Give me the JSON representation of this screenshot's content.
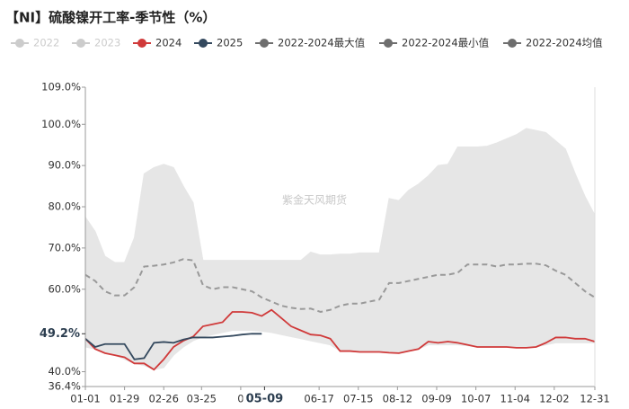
{
  "chart_data": {
    "type": "line",
    "title": "【NI】硫酸镍开工率-季节性（%）",
    "watermark": "紫金天风期货",
    "x": [
      0,
      7,
      14,
      21,
      28,
      35,
      42,
      49,
      56,
      63,
      70,
      77,
      84,
      91,
      98,
      105,
      112,
      119,
      126,
      133,
      140,
      147,
      154,
      161,
      168,
      175,
      182,
      189,
      196,
      203,
      210,
      217,
      224,
      231,
      238,
      245,
      252,
      259,
      266,
      273,
      280,
      287,
      294,
      301,
      308,
      315,
      322,
      329,
      336,
      343,
      350,
      357,
      364
    ],
    "xlim": [
      0,
      364
    ],
    "xticks": [
      {
        "value": 0,
        "label": "01-01"
      },
      {
        "value": 28,
        "label": "01-29"
      },
      {
        "value": 56,
        "label": "02-26"
      },
      {
        "value": 83,
        "label": "03-25"
      },
      {
        "value": 111,
        "label": "0"
      },
      {
        "value": 167,
        "label": "06-17"
      },
      {
        "value": 195,
        "label": "07-15"
      },
      {
        "value": 223,
        "label": "08-12"
      },
      {
        "value": 251,
        "label": "09-09"
      },
      {
        "value": 279,
        "label": "10-07"
      },
      {
        "value": 307,
        "label": "11-04"
      },
      {
        "value": 335,
        "label": "12-02"
      },
      {
        "value": 364,
        "label": "12-31"
      }
    ],
    "highlight_x": {
      "value": 128,
      "label": "05-09"
    },
    "ylim": [
      36.4,
      109
    ],
    "yticks": [
      {
        "value": 36.4,
        "label": "36.4%"
      },
      {
        "value": 40,
        "label": "40.0%"
      },
      {
        "value": 60,
        "label": "60.0%"
      },
      {
        "value": 70,
        "label": "70.0%"
      },
      {
        "value": 80,
        "label": "80.0%"
      },
      {
        "value": 90,
        "label": "90.0%"
      },
      {
        "value": 100,
        "label": "100.0%"
      },
      {
        "value": 109,
        "label": "109.0%"
      }
    ],
    "highlight_y": {
      "value": 49.2,
      "label": "49.2%"
    },
    "band_color": "#e6e6e6",
    "series": [
      {
        "name": "2022",
        "color": "#cccccc",
        "visible": false,
        "values": null
      },
      {
        "name": "2023",
        "color": "#cccccc",
        "visible": false,
        "values": null
      },
      {
        "name": "2024",
        "color": "#d03a3a",
        "visible": true,
        "role": "line",
        "values": [
          48,
          45.5,
          44.5,
          44,
          43.5,
          42,
          42,
          40.5,
          43,
          46,
          47.5,
          48.5,
          51,
          51.5,
          52,
          54.5,
          54.5,
          54.3,
          53.5,
          55,
          53,
          51,
          50,
          49,
          48.8,
          48,
          45,
          45,
          44.8,
          44.8,
          44.8,
          44.6,
          44.5,
          45,
          45.5,
          47.3,
          47,
          47.3,
          47,
          46.5,
          46,
          46,
          46,
          46,
          45.8,
          45.8,
          46,
          47,
          48.3,
          48.3,
          48,
          48,
          47.3
        ]
      },
      {
        "name": "2025",
        "color": "#34495e",
        "visible": true,
        "role": "line",
        "values": [
          48,
          46,
          46.7,
          46.7,
          46.7,
          43,
          43.3,
          47,
          47.2,
          47,
          47.8,
          48.3,
          48.3,
          48.3,
          48.5,
          48.7,
          49,
          49.2,
          49.2,
          null,
          null,
          null,
          null,
          null,
          null,
          null,
          null,
          null,
          null,
          null,
          null,
          null,
          null,
          null,
          null,
          null,
          null,
          null,
          null,
          null,
          null,
          null,
          null,
          null,
          null,
          null,
          null,
          null,
          null,
          null,
          null,
          null,
          null
        ]
      },
      {
        "name": "2022-2024最大值",
        "color": "#6e6e6e",
        "visible": true,
        "role": "max",
        "values": [
          77.5,
          74,
          68,
          66.5,
          66.5,
          72.5,
          88,
          89.5,
          90.3,
          89.5,
          85,
          81,
          67,
          67,
          67,
          67,
          67,
          67,
          67,
          67,
          67,
          67,
          67,
          69,
          68.3,
          68.3,
          68.5,
          68.5,
          68.8,
          68.8,
          68.8,
          82,
          81.5,
          84,
          85.5,
          87.5,
          90,
          90.3,
          94.5,
          94.5,
          94.5,
          94.7,
          95.5,
          96.5,
          97.5,
          99,
          98.5,
          98,
          96,
          94,
          88,
          82.5,
          78
        ]
      },
      {
        "name": "2022-2024最小值",
        "color": "#6e6e6e",
        "visible": true,
        "role": "min",
        "values": [
          46,
          45.5,
          44.5,
          44,
          43,
          42,
          41.5,
          40.5,
          41,
          44,
          46,
          47.5,
          48.5,
          49,
          49.5,
          50,
          50,
          50,
          49.8,
          49.5,
          49,
          48.5,
          48,
          47.5,
          47,
          46.5,
          45,
          45,
          44.8,
          44.8,
          44.8,
          44.6,
          44.5,
          45,
          45.5,
          46.5,
          46.5,
          46.5,
          46.5,
          46.3,
          46,
          46,
          46,
          46,
          45.8,
          45.8,
          46,
          46.5,
          47,
          47,
          47,
          47,
          47
        ]
      },
      {
        "name": "2022-2024均值",
        "color": "#6e6e6e",
        "visible": true,
        "role": "mean",
        "values": [
          63.5,
          62,
          59.5,
          58.5,
          58.5,
          60.5,
          65.5,
          65.7,
          66,
          66.5,
          67.3,
          67,
          61,
          60,
          60.5,
          60.5,
          60,
          59.5,
          58,
          57,
          56,
          55.5,
          55.2,
          55.3,
          54.5,
          55,
          56,
          56.5,
          56.5,
          57,
          57.5,
          61.5,
          61.5,
          62,
          62.5,
          63,
          63.5,
          63.5,
          64,
          66,
          66,
          66,
          65.5,
          66,
          66,
          66.2,
          66.2,
          65.8,
          64.5,
          63.5,
          61.5,
          59.5,
          58
        ]
      }
    ]
  }
}
